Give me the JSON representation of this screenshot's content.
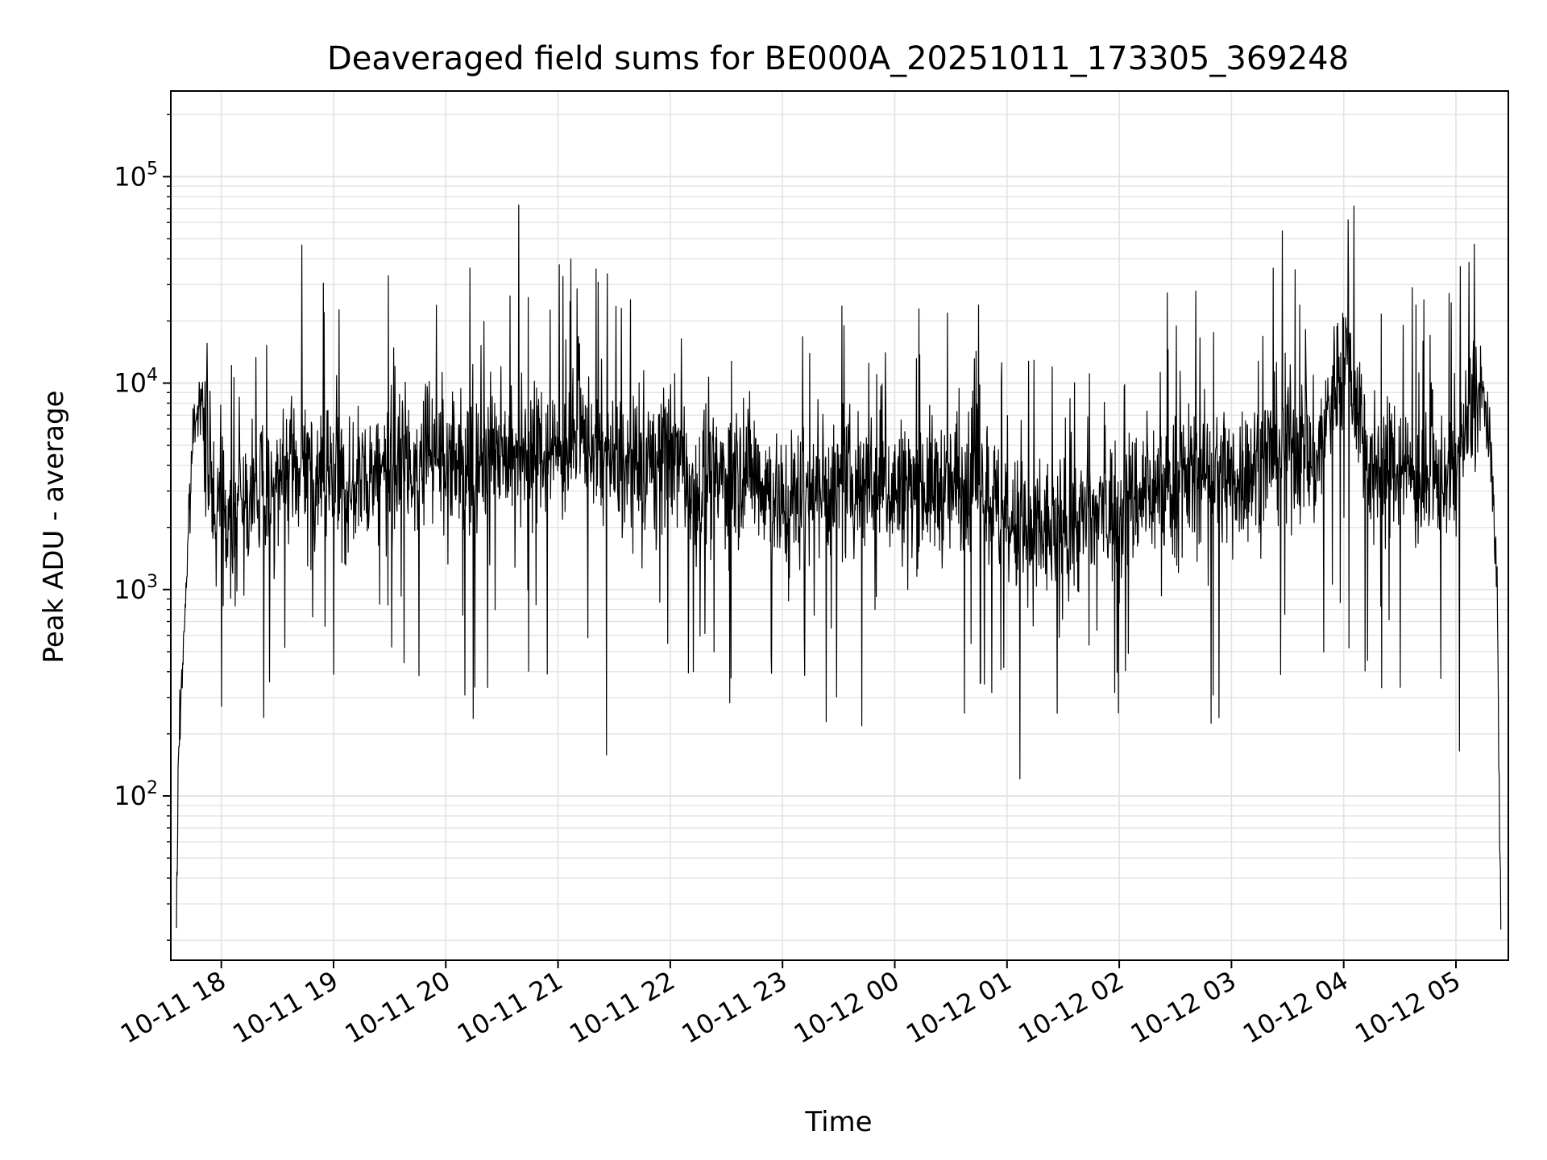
{
  "chart_data": {
    "type": "line",
    "title": "Deaveraged field sums for BE000A_20251011_173305_369248",
    "xlabel": "Time",
    "ylabel": "Peak ADU - average",
    "yscale": "log",
    "ylim": [
      16,
      260000
    ],
    "xlim": [
      "2025-10-11 17:33",
      "2025-10-12 05:28"
    ],
    "grid": true,
    "line_color": "#000000",
    "x_ticks": [
      "10-11 18",
      "10-11 19",
      "10-11 20",
      "10-11 21",
      "10-11 22",
      "10-11 23",
      "10-12 00",
      "10-12 01",
      "10-12 02",
      "10-12 03",
      "10-12 04",
      "10-12 05"
    ],
    "y_ticks": [
      {
        "base": "10",
        "exp": "2",
        "value": 100
      },
      {
        "base": "10",
        "exp": "3",
        "value": 1000
      },
      {
        "base": "10",
        "exp": "4",
        "value": 10000
      },
      {
        "base": "10",
        "exp": "5",
        "value": 100000
      }
    ],
    "series": [
      {
        "x": [
          "2025-10-11 17:36",
          "2025-10-11 17:37",
          "2025-10-11 17:39",
          "2025-10-11 17:42",
          "2025-10-11 17:45",
          "2025-10-11 17:48",
          "2025-10-11 17:52",
          "2025-10-11 17:57",
          "2025-10-11 18:04",
          "2025-10-11 18:15",
          "2025-10-11 18:30",
          "2025-10-11 18:45",
          "2025-10-11 19:00",
          "2025-10-11 19:15",
          "2025-10-11 19:30",
          "2025-10-11 19:45",
          "2025-10-11 20:00",
          "2025-10-11 20:15",
          "2025-10-11 20:30",
          "2025-10-11 20:45",
          "2025-10-11 21:00",
          "2025-10-11 21:15",
          "2025-10-11 21:30",
          "2025-10-11 21:45",
          "2025-10-11 22:00",
          "2025-10-11 22:15",
          "2025-10-11 22:30",
          "2025-10-11 22:45",
          "2025-10-11 23:00",
          "2025-10-11 23:15",
          "2025-10-11 23:30",
          "2025-10-11 23:45",
          "2025-10-12 00:00",
          "2025-10-12 00:15",
          "2025-10-12 00:30",
          "2025-10-12 00:45",
          "2025-10-12 01:00",
          "2025-10-12 01:15",
          "2025-10-12 01:30",
          "2025-10-12 01:45",
          "2025-10-12 02:00",
          "2025-10-12 02:15",
          "2025-10-12 02:30",
          "2025-10-12 02:45",
          "2025-10-12 03:00",
          "2025-10-12 03:15",
          "2025-10-12 03:30",
          "2025-10-12 03:45",
          "2025-10-12 04:00",
          "2025-10-12 04:15",
          "2025-10-12 04:30",
          "2025-10-12 04:45",
          "2025-10-12 05:00",
          "2025-10-12 05:10",
          "2025-10-12 05:15",
          "2025-10-12 05:20",
          "2025-10-12 05:22",
          "2025-10-12 05:24"
        ],
        "y": [
          20,
          150,
          400,
          1500,
          6000,
          9000,
          5000,
          2500,
          2200,
          2800,
          3200,
          4000,
          3000,
          3500,
          3800,
          4200,
          4500,
          3800,
          5000,
          4800,
          4500,
          5500,
          4000,
          3500,
          5000,
          3000,
          3500,
          3800,
          2500,
          3200,
          3000,
          3500,
          3000,
          3200,
          3000,
          3500,
          2000,
          1800,
          2000,
          2200,
          2500,
          3000,
          3200,
          3800,
          3500,
          4000,
          5500,
          4000,
          15000,
          4000,
          4000,
          3000,
          4000,
          8000,
          9000,
          3000,
          1000,
          20
        ]
      }
    ]
  }
}
